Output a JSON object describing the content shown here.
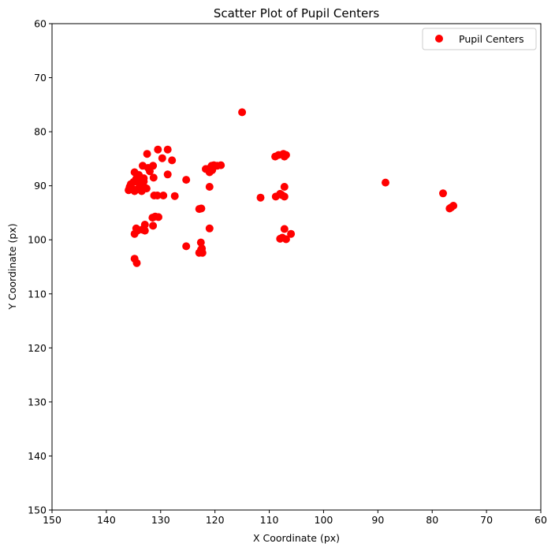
{
  "chart_data": {
    "type": "scatter",
    "title": "Scatter Plot of Pupil Centers",
    "xlabel": "X Coordinate (px)",
    "ylabel": "Y Coordinate (px)",
    "xlim": [
      150,
      60
    ],
    "ylim": [
      150,
      60
    ],
    "x_inverted": true,
    "y_inverted": true,
    "xticks": [
      150,
      140,
      130,
      120,
      110,
      100,
      90,
      80,
      70,
      60
    ],
    "yticks": [
      60,
      70,
      80,
      90,
      100,
      110,
      120,
      130,
      140,
      150
    ],
    "grid": false,
    "legend_position": "top-right",
    "series": [
      {
        "name": "Pupil Centers",
        "color": "#ff0000",
        "points": [
          [
            115.0,
            76.4
          ],
          [
            132.5,
            84.1
          ],
          [
            130.5,
            83.3
          ],
          [
            128.7,
            83.3
          ],
          [
            129.7,
            84.9
          ],
          [
            127.9,
            85.3
          ],
          [
            133.3,
            86.3
          ],
          [
            132.3,
            86.7
          ],
          [
            131.4,
            86.3
          ],
          [
            132.0,
            87.3
          ],
          [
            128.7,
            87.9
          ],
          [
            131.3,
            88.5
          ],
          [
            125.3,
            88.9
          ],
          [
            134.8,
            87.5
          ],
          [
            134.0,
            88.0
          ],
          [
            134.5,
            88.7
          ],
          [
            135.0,
            89.3
          ],
          [
            135.5,
            89.7
          ],
          [
            134.0,
            89.5
          ],
          [
            133.5,
            89.8
          ],
          [
            133.0,
            90.3
          ],
          [
            135.7,
            90.2
          ],
          [
            135.2,
            90.6
          ],
          [
            134.2,
            90.6
          ],
          [
            132.6,
            90.5
          ],
          [
            133.5,
            91.0
          ],
          [
            134.8,
            91.0
          ],
          [
            135.9,
            90.8
          ],
          [
            133.1,
            89.2
          ],
          [
            133.8,
            88.5
          ],
          [
            133.1,
            88.6
          ],
          [
            131.2,
            91.8
          ],
          [
            130.6,
            91.8
          ],
          [
            129.5,
            91.8
          ],
          [
            127.4,
            91.9
          ],
          [
            121.0,
            86.8
          ],
          [
            120.6,
            86.3
          ],
          [
            120.2,
            86.2
          ],
          [
            119.6,
            86.3
          ],
          [
            121.7,
            86.9
          ],
          [
            120.5,
            87.1
          ],
          [
            121.0,
            87.5
          ],
          [
            118.9,
            86.2
          ],
          [
            121.0,
            90.2
          ],
          [
            122.5,
            94.2
          ],
          [
            122.9,
            94.3
          ],
          [
            131.5,
            95.9
          ],
          [
            130.4,
            95.8
          ],
          [
            131.0,
            95.7
          ],
          [
            131.4,
            97.4
          ],
          [
            132.9,
            97.2
          ],
          [
            134.8,
            98.9
          ],
          [
            134.3,
            98.3
          ],
          [
            133.4,
            98.1
          ],
          [
            132.9,
            98.3
          ],
          [
            134.5,
            97.9
          ],
          [
            121.0,
            97.9
          ],
          [
            125.3,
            101.2
          ],
          [
            122.6,
            100.5
          ],
          [
            122.4,
            101.6
          ],
          [
            122.3,
            102.4
          ],
          [
            122.9,
            102.4
          ],
          [
            122.6,
            101.9
          ],
          [
            134.8,
            103.5
          ],
          [
            134.4,
            104.3
          ],
          [
            108.9,
            84.6
          ],
          [
            108.3,
            84.3
          ],
          [
            107.4,
            84.1
          ],
          [
            106.9,
            84.3
          ],
          [
            107.2,
            84.6
          ],
          [
            111.6,
            92.2
          ],
          [
            108.8,
            92.0
          ],
          [
            108.0,
            91.5
          ],
          [
            107.2,
            92.0
          ],
          [
            107.7,
            91.7
          ],
          [
            107.2,
            90.2
          ],
          [
            107.2,
            98.0
          ],
          [
            106.0,
            98.9
          ],
          [
            107.6,
            99.6
          ],
          [
            106.9,
            99.9
          ],
          [
            108.0,
            99.8
          ],
          [
            88.6,
            89.4
          ],
          [
            78.0,
            91.4
          ],
          [
            76.8,
            94.2
          ],
          [
            76.5,
            94.0
          ],
          [
            76.1,
            93.7
          ]
        ]
      }
    ]
  }
}
